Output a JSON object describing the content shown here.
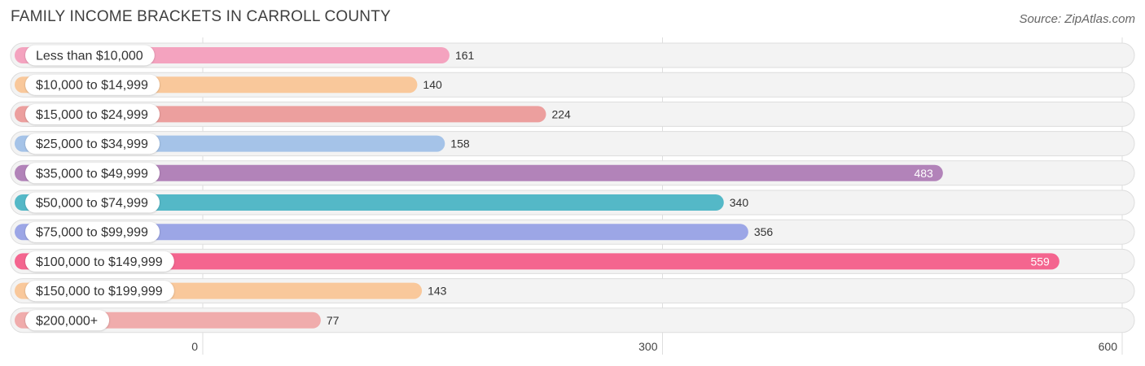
{
  "chart_data": {
    "type": "bar",
    "orientation": "horizontal",
    "title": "FAMILY INCOME BRACKETS IN CARROLL COUNTY",
    "source": "Source: ZipAtlas.com",
    "categories": [
      "Less than $10,000",
      "$10,000 to $14,999",
      "$15,000 to $24,999",
      "$25,000 to $34,999",
      "$35,000 to $49,999",
      "$50,000 to $74,999",
      "$75,000 to $99,999",
      "$100,000 to $149,999",
      "$150,000 to $199,999",
      "$200,000+"
    ],
    "values": [
      161,
      140,
      224,
      158,
      483,
      340,
      356,
      559,
      143,
      77
    ],
    "colors": [
      "#f4a3bf",
      "#f9c89b",
      "#ec9f9e",
      "#a5c3e8",
      "#b283b9",
      "#54b8c7",
      "#9ca6e6",
      "#f4658f",
      "#f9c89b",
      "#f0acac"
    ],
    "xlim": [
      0,
      600
    ],
    "xticks": [
      0,
      300,
      600
    ],
    "xlabel": "",
    "ylabel": "",
    "grid": true
  }
}
